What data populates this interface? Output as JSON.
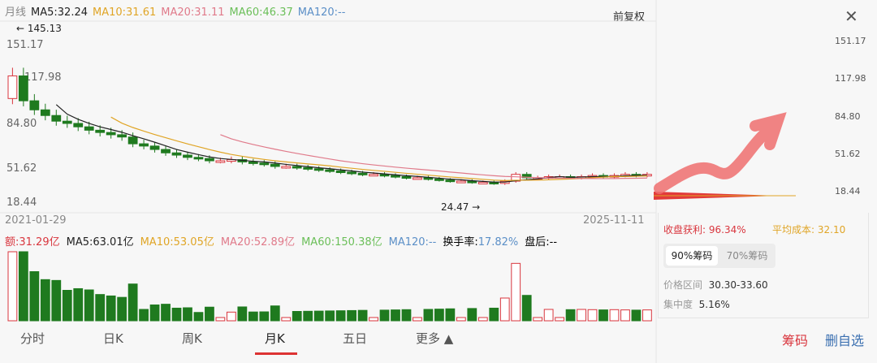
{
  "header": {
    "period": "月线",
    "ma5": "MA5:32.24",
    "ma10": "MA10:31.61",
    "ma20": "MA20:31.11",
    "ma60": "MA60:46.37",
    "ma120": "MA120:--",
    "adjust": "前复权",
    "close_icon": "close-icon"
  },
  "price_axis": {
    "left": [
      "151.17",
      "117.98",
      "84.80",
      "51.62",
      "18.44"
    ],
    "right": [
      "151.17",
      "117.98",
      "84.80",
      "51.62",
      "18.44"
    ],
    "high_marker": "145.13",
    "low_marker": "24.47"
  },
  "dates": {
    "start": "2021-01-29",
    "end": "2025-11-11"
  },
  "volume": {
    "amount": "额:31.29亿",
    "ma5": "MA5:63.01亿",
    "ma10": "MA10:53.05亿",
    "ma20": "MA20:52.89亿",
    "ma60": "MA60:150.38亿",
    "ma120": "MA120:--",
    "turnover_label": "换手率:",
    "turnover": "17.82%",
    "after_hours": "盘后:--"
  },
  "chips": {
    "profit_label": "收盘获利:",
    "profit": "96.34%",
    "avg_cost_label": "平均成本:",
    "avg_cost": "32.10",
    "tab90": "90%筹码",
    "tab70": "70%筹码",
    "range_label": "价格区间",
    "range": "30.30-33.60",
    "conc_label": "集中度",
    "conc": "5.16%"
  },
  "tabs": [
    "分时",
    "日K",
    "周K",
    "月K",
    "五日",
    "更多 ▲"
  ],
  "active_tab": "月K",
  "buttons": {
    "chips": "筹码",
    "remove": "删自选"
  },
  "colors": {
    "up": "#d9363e",
    "down": "#1f7a1f",
    "ma5": "#222222",
    "ma10": "#e0a526",
    "ma20": "#e07a8a",
    "ma60": "#6bbf59",
    "ma120": "#5b8fc7"
  },
  "chart_data": {
    "type": "candlestick",
    "closes_approx": [
      120,
      98,
      90,
      85,
      80,
      78,
      75,
      72,
      70,
      68,
      66,
      60,
      58,
      55,
      52,
      50,
      48,
      47,
      45,
      45,
      46,
      44,
      43,
      42,
      40,
      40,
      39,
      38,
      37,
      36,
      35,
      34,
      33,
      33,
      32,
      31,
      30,
      30,
      29,
      28,
      27,
      27,
      26,
      26,
      25,
      27,
      33,
      30,
      30,
      31,
      31,
      30,
      31,
      32,
      31,
      32,
      33,
      32,
      33
    ],
    "ylim": [
      18.44,
      151.17
    ]
  }
}
